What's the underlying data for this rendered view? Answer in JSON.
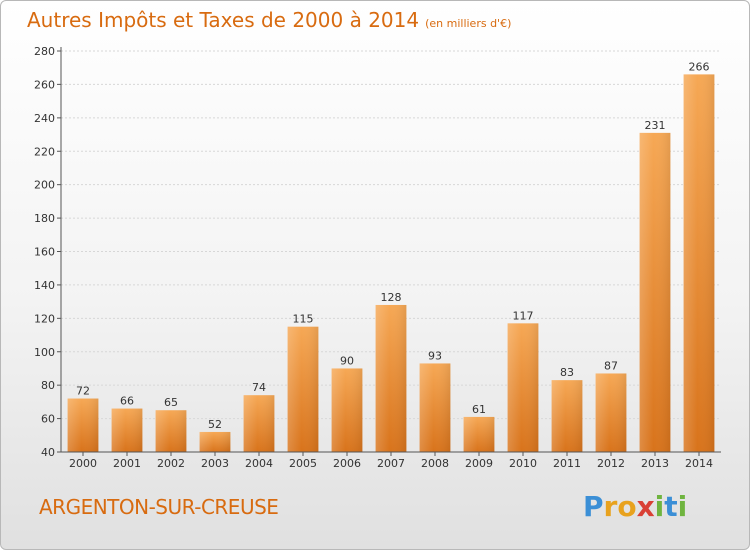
{
  "title": "Autres Impôts et Taxes de 2000 à 2014",
  "subtitle": "(en milliers d'€)",
  "city": "ARGENTON-SUR-CREUSE",
  "logo": {
    "letters": [
      "P",
      "r",
      "o",
      "x",
      "i",
      "t",
      "i"
    ],
    "colors": [
      "#3b8fd6",
      "#e8a21e",
      "#e8a21e",
      "#d94035",
      "#6fb43f",
      "#3b8fd6",
      "#6fb43f"
    ]
  },
  "colors": {
    "bar_light": "#f6a855",
    "bar_dark": "#d8731b",
    "text": "#d86b10",
    "grid": "#d7d7d7"
  },
  "chart_data": {
    "type": "bar",
    "categories": [
      "2000",
      "2001",
      "2002",
      "2003",
      "2004",
      "2005",
      "2006",
      "2007",
      "2008",
      "2009",
      "2010",
      "2011",
      "2012",
      "2013",
      "2014"
    ],
    "values": [
      72,
      66,
      65,
      52,
      74,
      115,
      90,
      128,
      93,
      61,
      117,
      83,
      87,
      231,
      266
    ],
    "ylim": [
      40,
      280
    ],
    "yticks": [
      40,
      60,
      80,
      100,
      120,
      140,
      160,
      180,
      200,
      220,
      240,
      260,
      280
    ],
    "grid": true,
    "data_labels": true
  }
}
